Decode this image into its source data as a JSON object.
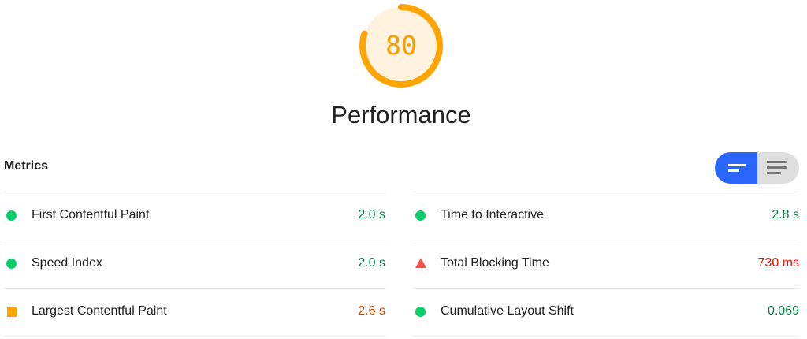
{
  "category": {
    "score": "80",
    "score_fraction": 0.8,
    "title": "Performance",
    "rating": "average",
    "colors": {
      "stroke": "#ffa400",
      "fill": "#fff3e0",
      "text": "#fa9e00"
    }
  },
  "metrics": {
    "label": "Metrics",
    "toggle": {
      "active": "compact-view",
      "options": [
        "compact-view-icon",
        "expanded-view-icon"
      ],
      "accent": "#2a66f9"
    },
    "left": [
      {
        "name": "First Contentful Paint",
        "value": "2.0 s",
        "rating": "pass"
      },
      {
        "name": "Speed Index",
        "value": "2.0 s",
        "rating": "pass"
      },
      {
        "name": "Largest Contentful Paint",
        "value": "2.6 s",
        "rating": "average"
      }
    ],
    "right": [
      {
        "name": "Time to Interactive",
        "value": "2.8 s",
        "rating": "pass"
      },
      {
        "name": "Total Blocking Time",
        "value": "730 ms",
        "rating": "fail"
      },
      {
        "name": "Cumulative Layout Shift",
        "value": "0.069",
        "rating": "pass"
      }
    ]
  }
}
